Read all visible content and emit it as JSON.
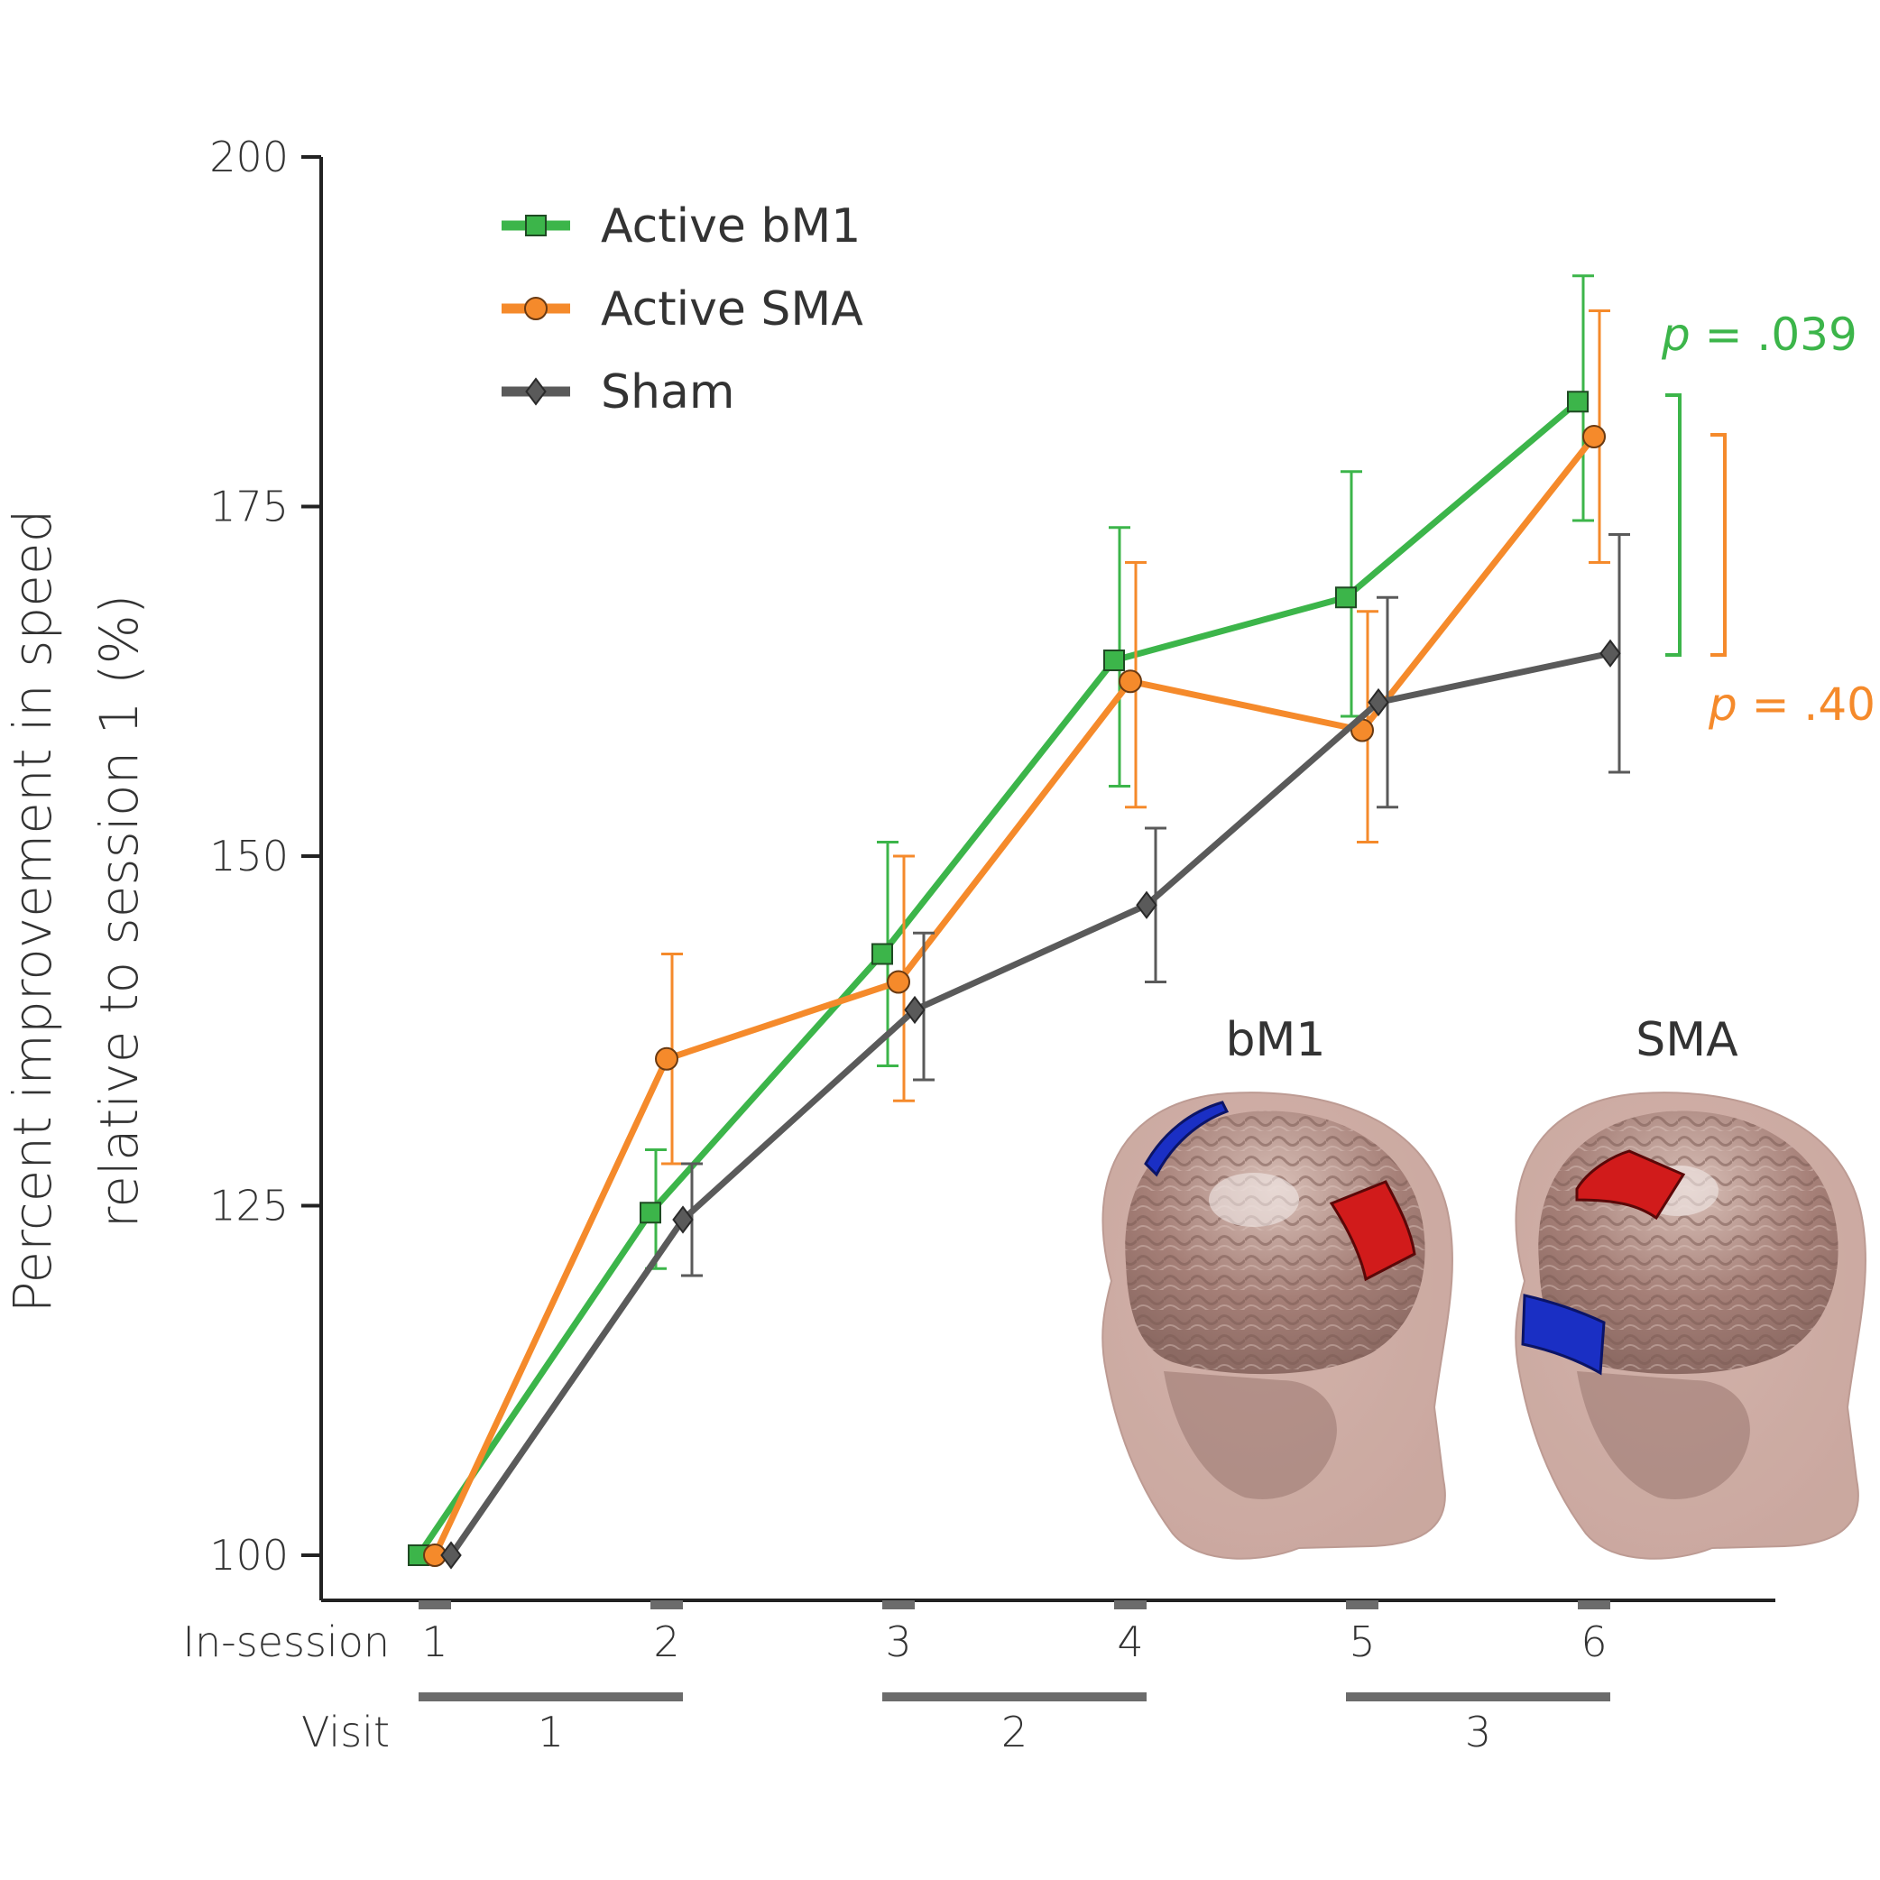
{
  "chart_data": {
    "type": "line",
    "ylabel_line1": "Percent improvement in speed",
    "ylabel_line2": "relative to session 1 (%)",
    "yticks": [
      100,
      125,
      150,
      175,
      200
    ],
    "ylim": [
      100,
      200
    ],
    "x": [
      1,
      2,
      3,
      4,
      5,
      6
    ],
    "in_session_label": "In-session",
    "in_session_ticks": [
      "1",
      "2",
      "3",
      "4",
      "5",
      "6"
    ],
    "visit_label": "Visit",
    "visits": [
      {
        "label": "1",
        "sessions": [
          1,
          2
        ]
      },
      {
        "label": "2",
        "sessions": [
          3,
          4
        ]
      },
      {
        "label": "3",
        "sessions": [
          5,
          6
        ]
      }
    ],
    "series": [
      {
        "name": "Active bM1",
        "color": "#3cb54a",
        "marker": "square",
        "values": [
          100,
          124.5,
          143,
          164,
          168.5,
          182.5
        ],
        "err_low": [
          100,
          120.5,
          135,
          155,
          160,
          174
        ],
        "err_high": [
          100,
          129,
          151,
          173.5,
          177.5,
          191.5
        ]
      },
      {
        "name": "Active SMA",
        "color": "#f58a2b",
        "marker": "circle",
        "values": [
          100,
          135.5,
          141,
          162.5,
          159,
          180
        ],
        "err_low": [
          100,
          128,
          132.5,
          153.5,
          151,
          171
        ],
        "err_high": [
          100,
          143,
          150,
          171,
          167.5,
          189
        ]
      },
      {
        "name": "Sham",
        "color": "#5a5a5a",
        "marker": "diamond",
        "values": [
          100,
          124,
          139,
          146.5,
          161,
          164.5
        ],
        "err_low": [
          100,
          120,
          134,
          141,
          153.5,
          156
        ],
        "err_high": [
          100,
          128,
          144.5,
          152,
          168.5,
          173
        ]
      }
    ],
    "annotations": [
      {
        "prefix": "p",
        "text": " = .039",
        "color": "#3cb54a"
      },
      {
        "prefix": "p",
        "text": " = .40",
        "color": "#f58a2b"
      }
    ],
    "inset_labels": [
      "bM1",
      "SMA"
    ]
  }
}
